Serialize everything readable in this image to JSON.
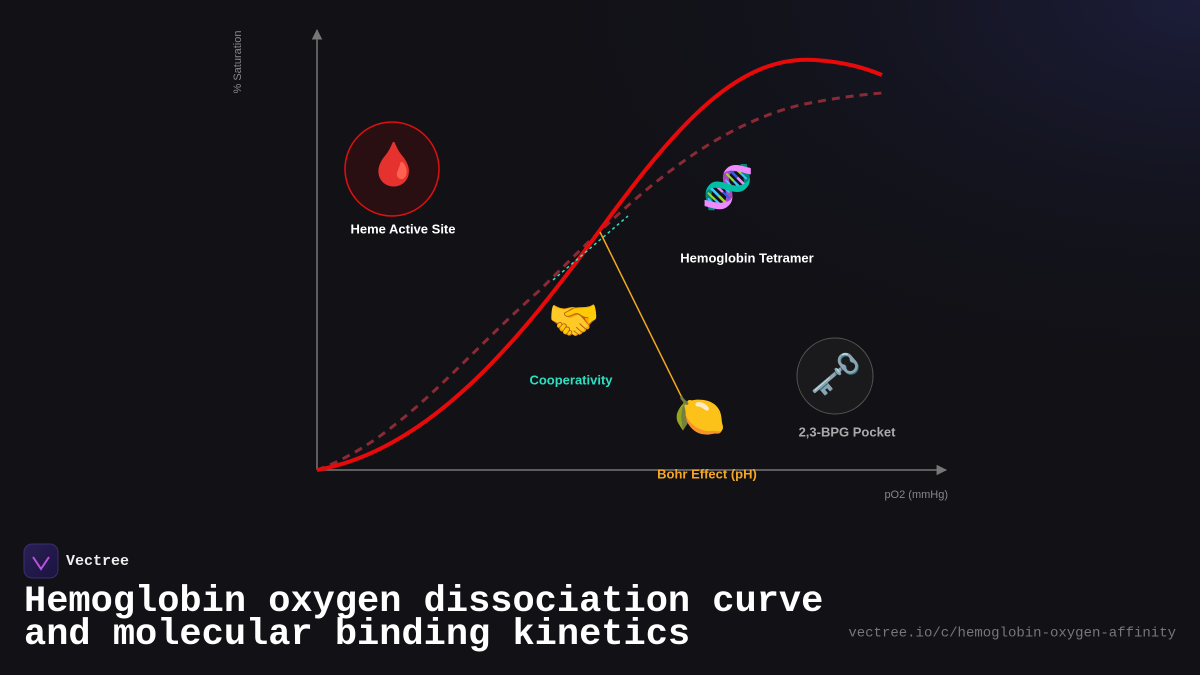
{
  "axes": {
    "y_label": "% Saturation",
    "x_label": "pO2 (mmHg)"
  },
  "nodes": [
    {
      "icon": "🩸",
      "label": "Heme Active Site"
    },
    {
      "icon": "🧬",
      "label": "Hemoglobin Tetramer"
    },
    {
      "icon": "🤝",
      "label": "Cooperativity"
    },
    {
      "icon": "🍋",
      "label": "Bohr Effect (pH)"
    },
    {
      "icon": "🗝️",
      "label": "2,3-BPG Pocket"
    }
  ],
  "footer": {
    "brand": "Vectree",
    "title": [
      "Hemoglobin oxygen dissociation curve",
      "and molecular binding kinetics"
    ],
    "url": "vectree.io/c/hemoglobin-oxygen-affinity"
  }
}
